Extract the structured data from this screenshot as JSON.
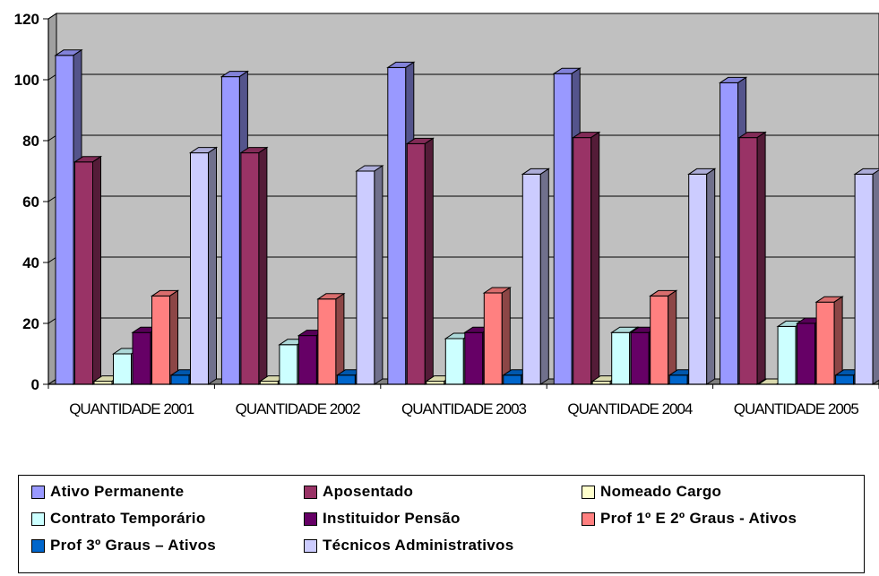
{
  "chart_data": {
    "type": "bar",
    "title": "",
    "xlabel": "",
    "ylabel": "",
    "ylim": [
      0,
      120
    ],
    "yticks": [
      "0",
      "20",
      "40",
      "60",
      "80",
      "100",
      "120"
    ],
    "grid": "horizontal",
    "legend_position": "bottom",
    "categories": [
      "QUANTIDADE 2001",
      "QUANTIDADE 2002",
      "QUANTIDADE 2003",
      "QUANTIDADE 2004",
      "QUANTIDADE 2005"
    ],
    "series": [
      {
        "name": "Ativo Permanente",
        "color": "#9999ff",
        "values": [
          108,
          101,
          104,
          102,
          99
        ]
      },
      {
        "name": "Aposentado",
        "color": "#993366",
        "values": [
          73,
          76,
          79,
          81,
          81
        ]
      },
      {
        "name": "Nomeado Cargo",
        "color": "#ffffcc",
        "values": [
          1,
          1,
          1,
          1,
          0
        ]
      },
      {
        "name": "Contrato Temporário",
        "color": "#ccffff",
        "values": [
          10,
          13,
          15,
          17,
          19
        ]
      },
      {
        "name": "Instituidor Pensão",
        "color": "#660066",
        "values": [
          17,
          16,
          17,
          17,
          20
        ]
      },
      {
        "name": "Prof 1º E 2º Graus - Ativos",
        "color": "#ff8080",
        "values": [
          29,
          28,
          30,
          29,
          27
        ]
      },
      {
        "name": "Prof 3º Graus – Ativos",
        "color": "#0066cc",
        "values": [
          3,
          3,
          3,
          3,
          3
        ]
      },
      {
        "name": "Técnicos Administrativos",
        "color": "#ccccff",
        "values": [
          76,
          70,
          69,
          69,
          69
        ]
      }
    ]
  },
  "colors": {
    "plot_background": "#c0c0c0",
    "gridline": "#000000"
  }
}
